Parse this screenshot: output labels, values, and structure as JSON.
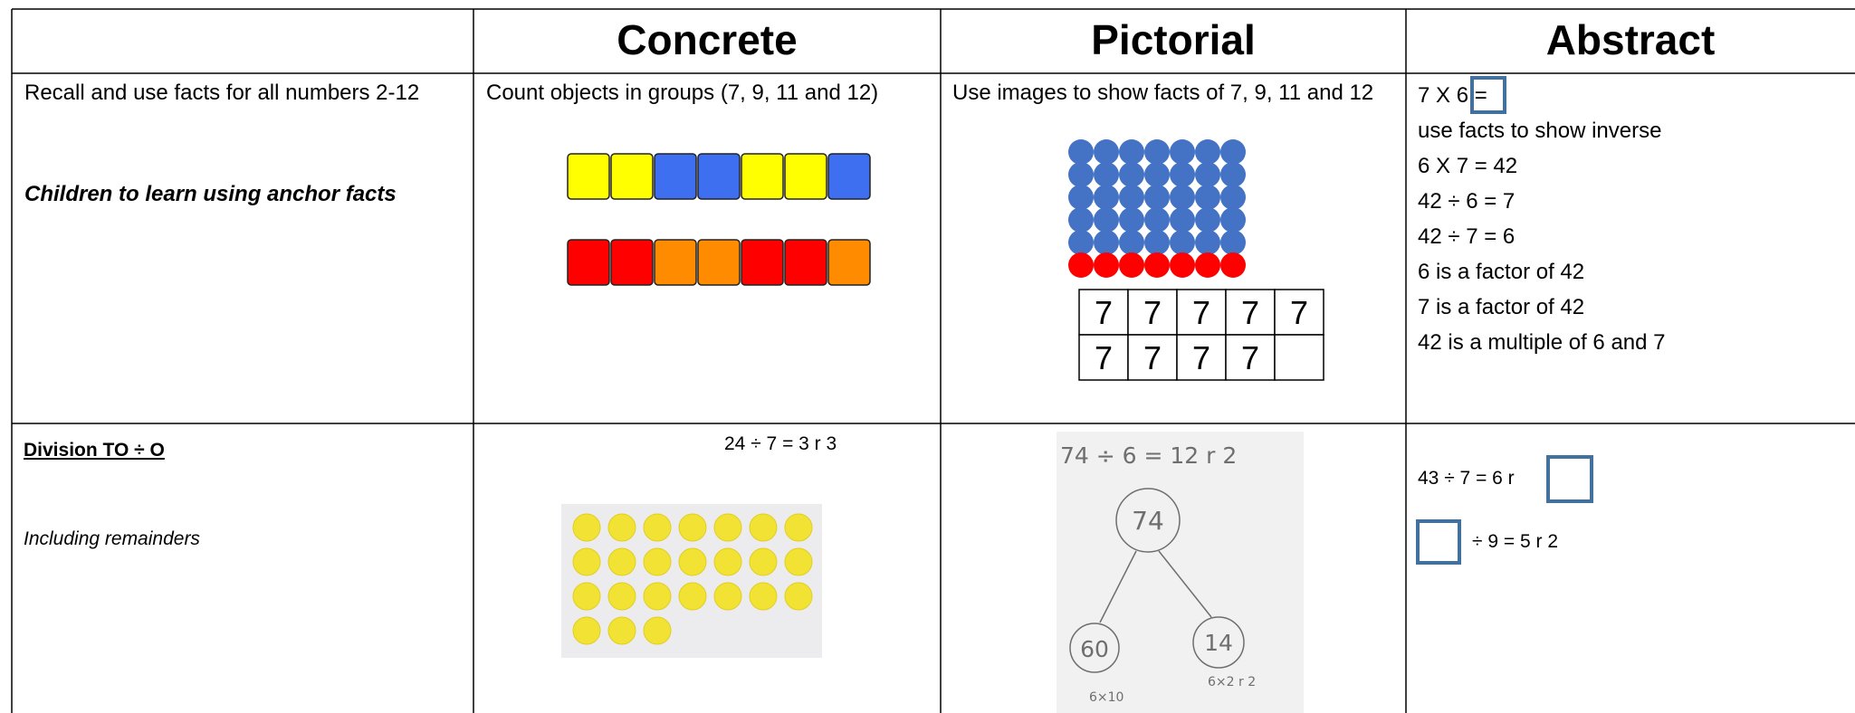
{
  "table": {
    "headers": [
      "Concrete",
      "Pictorial",
      "Abstract"
    ],
    "rows": [
      {
        "objective": [
          "Recall and use facts for all numbers 2-12",
          "Children to learn using anchor facts"
        ],
        "concrete": "Count objects in groups (7, 9, 11 and 12)",
        "pictorial": {
          "caption": "Use images to show facts of 7, 9, 11 and 12",
          "grid": [
            [
              "7",
              "7",
              "7",
              "7",
              "7"
            ],
            [
              "7",
              "7",
              "7",
              "7"
            ]
          ]
        },
        "abstract": [
          "7 X 6 =",
          "use facts to show inverse",
          "6 X 7 = 42",
          "42 ÷ 6 = 7",
          "42 ÷ 7 = 6",
          "6 is a factor of 42",
          "7 is a factor of 42",
          "42 is a multiple of 6 and 7"
        ]
      },
      {
        "objective": [
          "Division TO ÷ O",
          "Including remainders"
        ],
        "concrete": "24 ÷ 7 = 3 r 3",
        "pictorial": {
          "equation": "74 ÷ 6 = 12 r 2",
          "nodes": [
            "74",
            "60",
            "14"
          ],
          "notes": [
            "6×10",
            "6×2 r 2"
          ]
        },
        "abstract": [
          "43 ÷ 7 = 6 r",
          "÷ 9 = 5 r 2"
        ]
      }
    ]
  }
}
